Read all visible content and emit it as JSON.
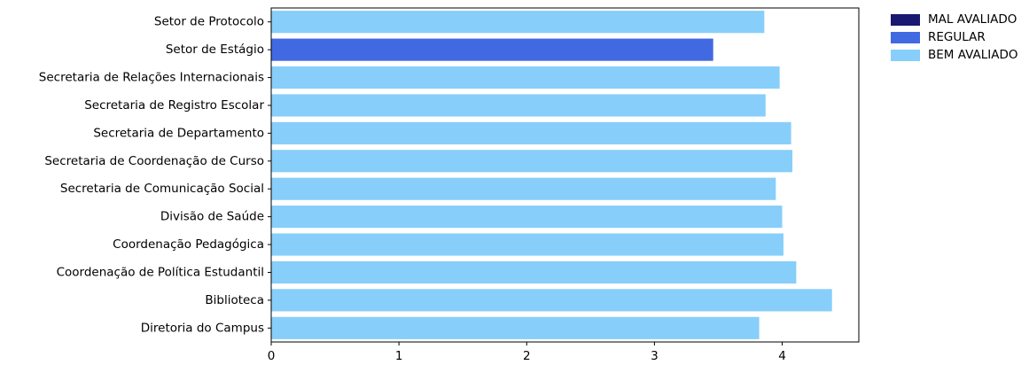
{
  "chart_data": {
    "type": "bar",
    "orientation": "horizontal",
    "title": "",
    "xlabel": "",
    "ylabel": "",
    "xlim": [
      0,
      4.6
    ],
    "xticks": [
      0,
      1,
      2,
      3,
      4
    ],
    "categories": [
      "Setor de Protocolo",
      "Setor de Estágio",
      "Secretaria de Relações Internacionais",
      "Secretaria de Registro Escolar",
      "Secretaria de Departamento",
      "Secretaria de Coordenação de Curso",
      "Secretaria de Comunicação Social",
      "Divisão de Saúde",
      "Coordenação Pedagógica",
      "Coordenação de Política Estudantil",
      "Biblioteca",
      "Diretoria do Campus"
    ],
    "values": [
      3.86,
      3.46,
      3.98,
      3.87,
      4.07,
      4.08,
      3.95,
      4.0,
      4.01,
      4.11,
      4.39,
      3.82
    ],
    "classes": [
      "BEM AVALIADO",
      "REGULAR",
      "BEM AVALIADO",
      "BEM AVALIADO",
      "BEM AVALIADO",
      "BEM AVALIADO",
      "BEM AVALIADO",
      "BEM AVALIADO",
      "BEM AVALIADO",
      "BEM AVALIADO",
      "BEM AVALIADO",
      "BEM AVALIADO"
    ],
    "grid": false,
    "legend_position": "outside-top-right"
  },
  "legend": [
    {
      "label": "MAL AVALIADO",
      "color": "#191970"
    },
    {
      "label": "REGULAR",
      "color": "#4169e1"
    },
    {
      "label": "BEM AVALIADO",
      "color": "#87cefa"
    }
  ]
}
